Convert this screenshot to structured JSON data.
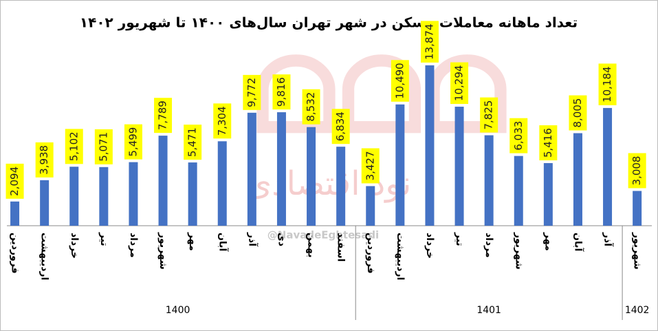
{
  "chart_data": {
    "type": "bar",
    "title": "تعداد ماهانه معاملات مسکن در شهر تهران سال‌های ۱۴۰۰ تا شهریور ۱۴۰۲",
    "watermark": "نود اقتصادی",
    "handle": "@NavadeEghtesadi",
    "color": "#4472c4",
    "label_color": "#ffff00",
    "ylim": [
      0,
      15000
    ],
    "groups": [
      {
        "label": "1400",
        "categories": [
          "فروردین",
          "اردیبهشت",
          "خرداد",
          "تیر",
          "مرداد",
          "شهریور",
          "مهر",
          "آبان",
          "آذر",
          "دی",
          "بهمن",
          "اسفند"
        ],
        "values": [
          2094,
          3938,
          5102,
          5071,
          5499,
          7789,
          5471,
          7304,
          9772,
          9816,
          8532,
          6834
        ],
        "value_labels": [
          "2,094",
          "3,938",
          "5,102",
          "5,071",
          "5,499",
          "7,789",
          "5,471",
          "7,304",
          "9,772",
          "9,816",
          "8,532",
          "6,834"
        ]
      },
      {
        "label": "1401",
        "categories": [
          "فروردین",
          "اردیبهشت",
          "خرداد",
          "تیر",
          "مرداد",
          "شهریور",
          "مهر",
          "آبان",
          "آذر"
        ],
        "values": [
          3427,
          10490,
          13874,
          10294,
          7825,
          6033,
          5416,
          8005,
          10184
        ],
        "value_labels": [
          "3,427",
          "10,490",
          "13,874",
          "10,294",
          "7,825",
          "6,033",
          "5,416",
          "8,005",
          "10,184"
        ]
      },
      {
        "label": "1402",
        "categories": [
          "شهریور"
        ],
        "values": [
          3008
        ],
        "value_labels": [
          "3,008"
        ]
      }
    ]
  }
}
